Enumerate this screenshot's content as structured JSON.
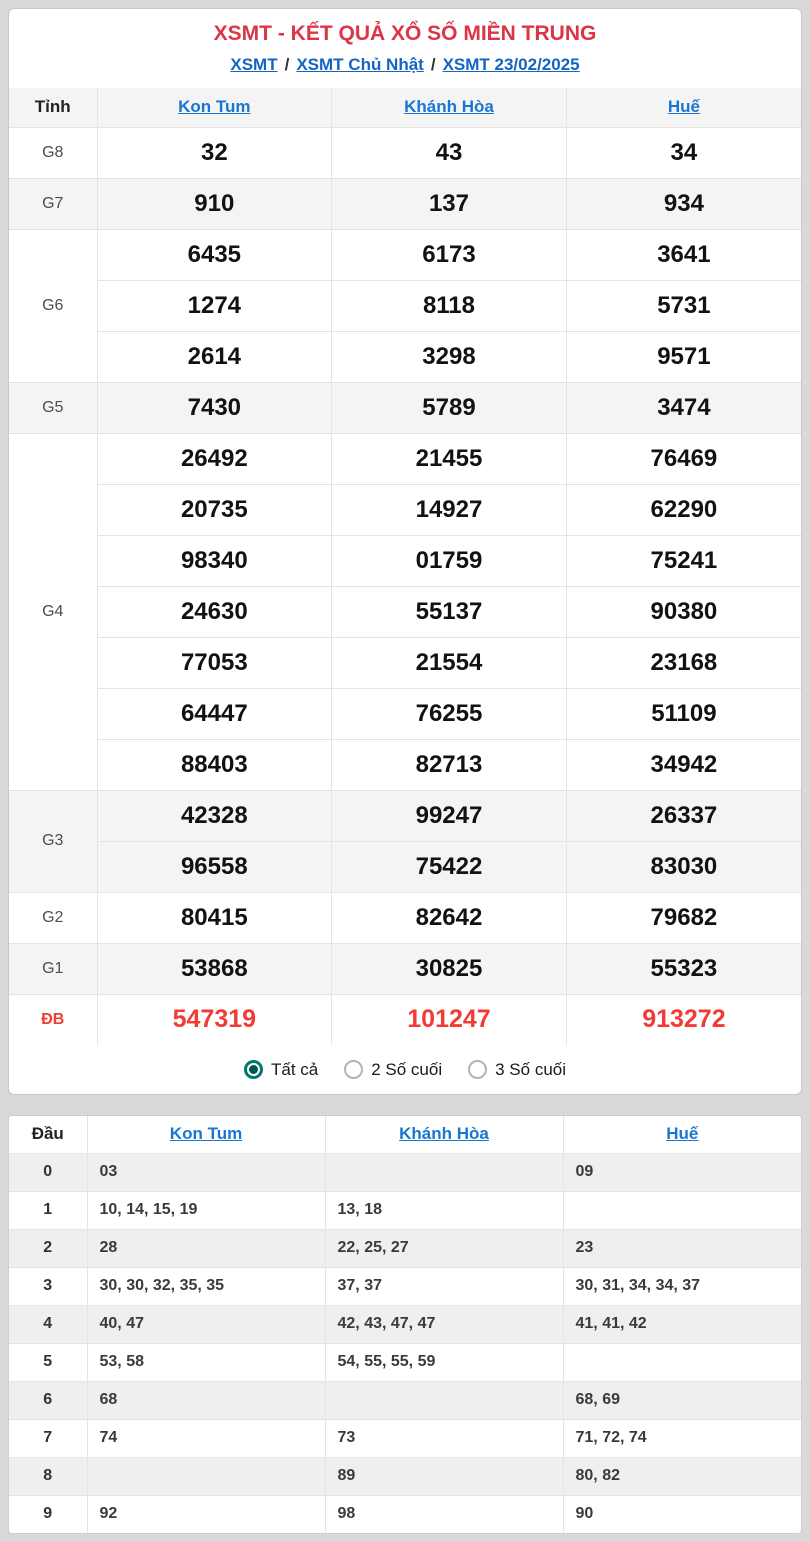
{
  "page": {
    "title": "XSMT - KẾT QUẢ XỔ SỐ MIỀN TRUNG",
    "breadcrumb": {
      "links": [
        "XSMT",
        "XSMT Chủ Nhật",
        "XSMT 23/02/2025"
      ],
      "separator": "/"
    }
  },
  "colors": {
    "title_red": "#dc3545",
    "link_blue": "#1976d2",
    "breadcrumb_blue": "#1565c0",
    "special_red": "#f23b35",
    "radio_teal": "#00796b",
    "stripe_gray": "#f4f4f4"
  },
  "results_table": {
    "province_header": "Tỉnh",
    "provinces": [
      "Kon Tum",
      "Khánh Hòa",
      "Huế"
    ],
    "rows": [
      {
        "prize": "G8",
        "sub": [
          [
            "32",
            "43",
            "34"
          ]
        ]
      },
      {
        "prize": "G7",
        "sub": [
          [
            "910",
            "137",
            "934"
          ]
        ]
      },
      {
        "prize": "G6",
        "sub": [
          [
            "6435",
            "6173",
            "3641"
          ],
          [
            "1274",
            "8118",
            "5731"
          ],
          [
            "2614",
            "3298",
            "9571"
          ]
        ]
      },
      {
        "prize": "G5",
        "sub": [
          [
            "7430",
            "5789",
            "3474"
          ]
        ]
      },
      {
        "prize": "G4",
        "sub": [
          [
            "26492",
            "21455",
            "76469"
          ],
          [
            "20735",
            "14927",
            "62290"
          ],
          [
            "98340",
            "01759",
            "75241"
          ],
          [
            "24630",
            "55137",
            "90380"
          ],
          [
            "77053",
            "21554",
            "23168"
          ],
          [
            "64447",
            "76255",
            "51109"
          ],
          [
            "88403",
            "82713",
            "34942"
          ]
        ]
      },
      {
        "prize": "G3",
        "sub": [
          [
            "42328",
            "99247",
            "26337"
          ],
          [
            "96558",
            "75422",
            "83030"
          ]
        ]
      },
      {
        "prize": "G2",
        "sub": [
          [
            "80415",
            "82642",
            "79682"
          ]
        ]
      },
      {
        "prize": "G1",
        "sub": [
          [
            "53868",
            "30825",
            "55323"
          ]
        ]
      },
      {
        "prize": "ĐB",
        "sub": [
          [
            "547319",
            "101247",
            "913272"
          ]
        ]
      }
    ]
  },
  "filter": {
    "options": [
      {
        "label": "Tất cả",
        "selected": true
      },
      {
        "label": "2 Số cuối",
        "selected": false
      },
      {
        "label": "3 Số cuối",
        "selected": false
      }
    ]
  },
  "dau_table": {
    "header": "Đầu",
    "provinces": [
      "Kon Tum",
      "Khánh Hòa",
      "Huế"
    ],
    "rows": [
      {
        "digit": "0",
        "values": [
          "03",
          "",
          "09"
        ]
      },
      {
        "digit": "1",
        "values": [
          "10, 14, 15, 19",
          "13, 18",
          ""
        ]
      },
      {
        "digit": "2",
        "values": [
          "28",
          "22, 25, 27",
          "23"
        ]
      },
      {
        "digit": "3",
        "values": [
          "30, 30, 32, 35, 35",
          "37, 37",
          "30, 31, 34, 34, 37"
        ]
      },
      {
        "digit": "4",
        "values": [
          "40, 47",
          "42, 43, 47, 47",
          "41, 41, 42"
        ]
      },
      {
        "digit": "5",
        "values": [
          "53, 58",
          "54, 55, 55, 59",
          ""
        ]
      },
      {
        "digit": "6",
        "values": [
          "68",
          "",
          "68, 69"
        ]
      },
      {
        "digit": "7",
        "values": [
          "74",
          "73",
          "71, 72, 74"
        ]
      },
      {
        "digit": "8",
        "values": [
          "",
          "89",
          "80, 82"
        ]
      },
      {
        "digit": "9",
        "values": [
          "92",
          "98",
          "90"
        ]
      }
    ]
  }
}
